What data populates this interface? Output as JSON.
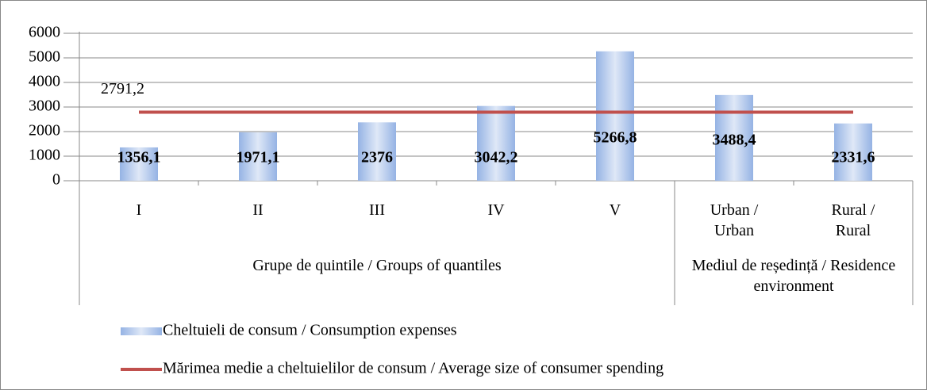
{
  "chart_data": {
    "type": "bar",
    "categories": [
      "I",
      "II",
      "III",
      "IV",
      "V",
      "Urban / Urban",
      "Rural / Rural"
    ],
    "groups": [
      {
        "label": "Grupe de quintile / Groups of quantiles",
        "span": 5
      },
      {
        "label": "Mediul de reședință / Residence environment",
        "span": 2
      }
    ],
    "series": [
      {
        "name": "Cheltuieli de consum / Consumption expenses",
        "type": "bar",
        "color": "#95b3e4",
        "values": [
          1356.1,
          1971.1,
          2376,
          3042.2,
          5266.8,
          3488.4,
          2331.6
        ],
        "value_labels": [
          "1356,1",
          "1971,1",
          "2376",
          "3042,2",
          "5266,8",
          "3488,4",
          "2331,6"
        ]
      },
      {
        "name": "Mărimea medie a cheltuielilor de consum / Average size of consumer spending",
        "type": "line",
        "color": "#c0504d",
        "values": [
          2791.2,
          2791.2,
          2791.2,
          2791.2,
          2791.2,
          2791.2,
          2791.2
        ],
        "value_labels": [
          "2791,2",
          null,
          null,
          null,
          null,
          null,
          null
        ]
      }
    ],
    "ylim": [
      0,
      6000
    ],
    "yticks": [
      0,
      1000,
      2000,
      3000,
      4000,
      5000,
      6000
    ],
    "grid": true,
    "legend": "bottom"
  }
}
